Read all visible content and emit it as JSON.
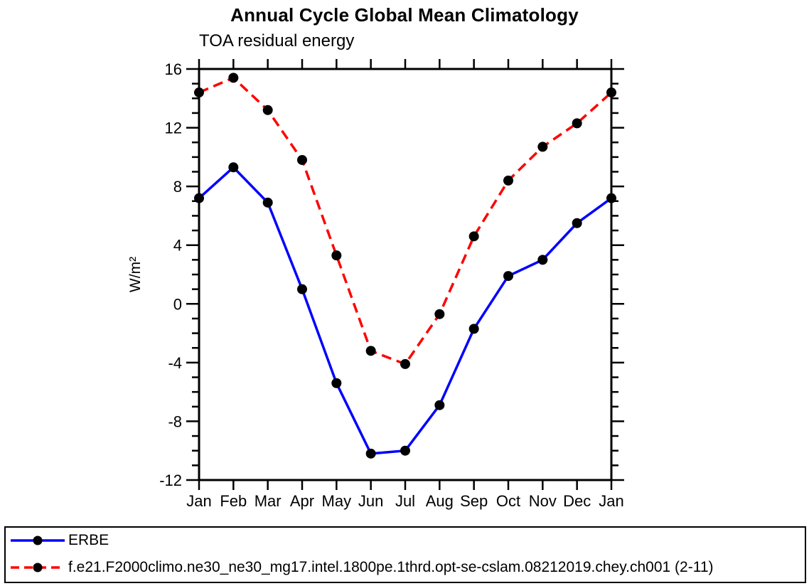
{
  "title": "Annual Cycle Global Mean Climatology",
  "subtitle": "TOA residual energy",
  "chart_data": {
    "type": "line",
    "title": "Annual Cycle Global Mean Climatology",
    "subtitle": "TOA residual energy",
    "ylabel": "W/m²",
    "xlabel": "",
    "x_categories": [
      "Jan",
      "Feb",
      "Mar",
      "Apr",
      "May",
      "Jun",
      "Jul",
      "Aug",
      "Sep",
      "Oct",
      "Nov",
      "Dec",
      "Jan"
    ],
    "ylim": [
      -12,
      16
    ],
    "ytick_major": [
      -12,
      -8,
      -4,
      0,
      4,
      8,
      12,
      16
    ],
    "ytick_minor_step": 1,
    "grid": false,
    "legend_position": "bottom",
    "marker": "filled-circle",
    "marker_color": "#000000",
    "series": [
      {
        "name": "ERBE",
        "color": "#0000ff",
        "style": "solid",
        "values": [
          7.2,
          9.3,
          6.9,
          1.0,
          -5.4,
          -10.2,
          -10.0,
          -6.9,
          -1.7,
          1.9,
          3.0,
          5.5,
          7.2
        ]
      },
      {
        "name": "f.e21.F2000climo.ne30_ne30_mg17.intel.1800pe.1thrd.opt-se-cslam.08212019.chey.ch001 (2-11)",
        "color": "#ff0000",
        "style": "dashed",
        "values": [
          14.4,
          15.4,
          13.2,
          9.8,
          3.3,
          -3.2,
          -4.1,
          -0.7,
          4.6,
          8.4,
          10.7,
          12.3,
          14.4
        ]
      }
    ]
  }
}
